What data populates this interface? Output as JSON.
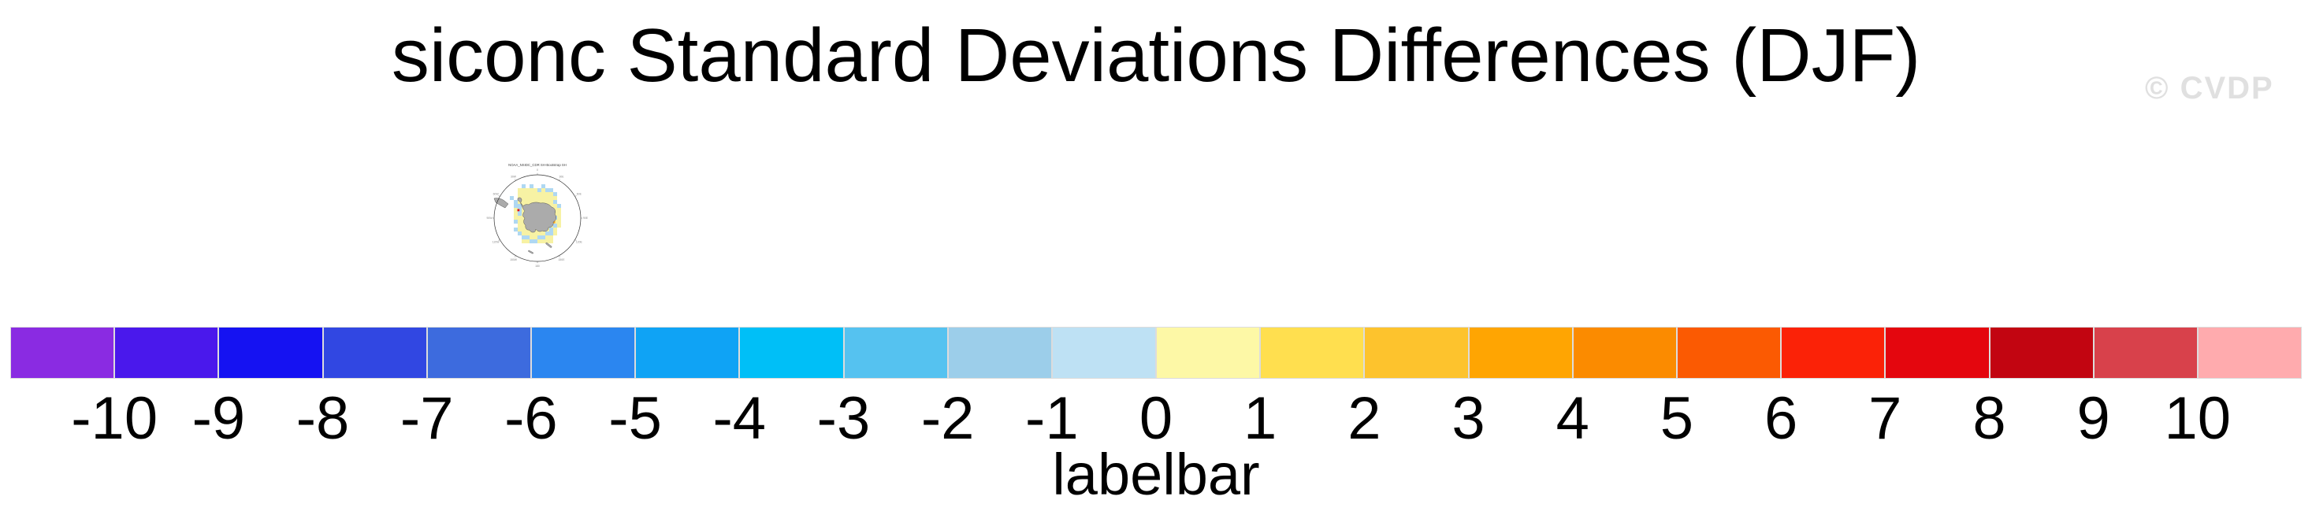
{
  "page": {
    "title": "siconc Standard Deviations Differences (DJF)",
    "watermark": "© CVDP"
  },
  "map": {
    "title": "NOAA_NSIDC_CDR SH-Bootstrap SH",
    "projection": "south-polar-stereographic",
    "ring_labels": [
      "0",
      "30E",
      "60E",
      "90E",
      "120E",
      "150E",
      "180",
      "150W",
      "120W",
      "90W",
      "60W",
      "30W"
    ]
  },
  "chart_data": {
    "type": "heatmap",
    "title": "siconc Standard Deviations Differences (DJF)",
    "variable": "siconc",
    "season": "DJF",
    "panels": [
      {
        "name": "NOAA_NSIDC_CDR SH-Bootstrap SH",
        "description": "South polar stereographic map of sea-ice concentration standard-deviation differences; mostly pale-yellow and pale-blue cells (values near 0 to +1 and -1 to 0) surrounding Antarctica, one red cell near the Antarctic Peninsula and one orange cell near 90E coast"
      }
    ],
    "colorbar": {
      "label": "labelbar",
      "orientation": "horizontal",
      "ticks": [
        -10,
        -9,
        -8,
        -7,
        -6,
        -5,
        -4,
        -3,
        -2,
        -1,
        0,
        1,
        2,
        3,
        4,
        5,
        6,
        7,
        8,
        9,
        10
      ],
      "colors": [
        "#8A2BE2",
        "#4A18EC",
        "#1512F2",
        "#3147E2",
        "#3D6BDE",
        "#2B86F0",
        "#0FA3F5",
        "#00BFF7",
        "#55C2F0",
        "#9CCEEA",
        "#BEE1F4",
        "#FDF8A6",
        "#FFDF4F",
        "#FDC32D",
        "#FFA502",
        "#FB8B00",
        "#FB5A02",
        "#FB2207",
        "#E4060E",
        "#C20511",
        "#D8414B",
        "#FFABAE"
      ],
      "box_border_color": "#dcdcdc"
    }
  }
}
